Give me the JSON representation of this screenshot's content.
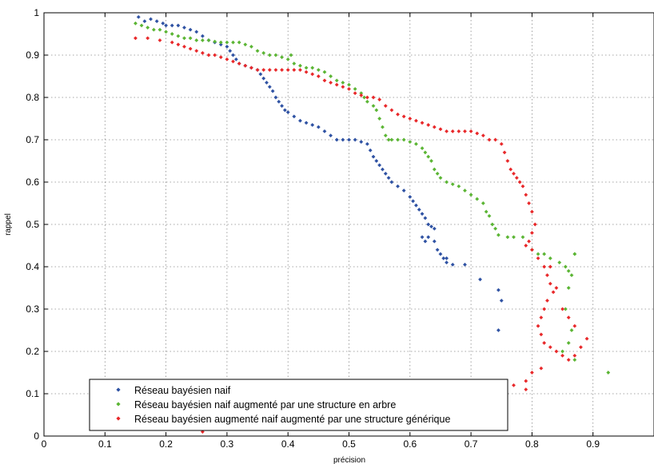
{
  "chart_data": {
    "type": "scatter",
    "title": "",
    "xlabel": "précision",
    "ylabel": "rappel",
    "xlim": [
      0,
      1
    ],
    "ylim": [
      0,
      1
    ],
    "grid": true,
    "legend_position": "bottom-left",
    "x_ticks": [
      "0",
      "0.1",
      "0.2",
      "0.3",
      "0.4",
      "0.5",
      "0.6",
      "0.7",
      "0.8",
      "0.9"
    ],
    "y_ticks": [
      "0",
      "0.1",
      "0.2",
      "0.3",
      "0.4",
      "0.5",
      "0.6",
      "0.7",
      "0.8",
      "0.9",
      "1"
    ],
    "series": [
      {
        "name": "Réseau bayésien naif",
        "color": "#2f52a3",
        "points": [
          [
            0.155,
            0.99
          ],
          [
            0.165,
            0.98
          ],
          [
            0.175,
            0.985
          ],
          [
            0.185,
            0.98
          ],
          [
            0.195,
            0.975
          ],
          [
            0.2,
            0.97
          ],
          [
            0.21,
            0.97
          ],
          [
            0.22,
            0.97
          ],
          [
            0.23,
            0.965
          ],
          [
            0.24,
            0.96
          ],
          [
            0.25,
            0.955
          ],
          [
            0.26,
            0.945
          ],
          [
            0.27,
            0.935
          ],
          [
            0.28,
            0.93
          ],
          [
            0.29,
            0.925
          ],
          [
            0.3,
            0.92
          ],
          [
            0.305,
            0.91
          ],
          [
            0.31,
            0.9
          ],
          [
            0.315,
            0.89
          ],
          [
            0.32,
            0.88
          ],
          [
            0.33,
            0.875
          ],
          [
            0.34,
            0.87
          ],
          [
            0.35,
            0.865
          ],
          [
            0.355,
            0.855
          ],
          [
            0.36,
            0.845
          ],
          [
            0.365,
            0.835
          ],
          [
            0.37,
            0.825
          ],
          [
            0.375,
            0.815
          ],
          [
            0.38,
            0.8
          ],
          [
            0.385,
            0.79
          ],
          [
            0.39,
            0.78
          ],
          [
            0.395,
            0.77
          ],
          [
            0.4,
            0.765
          ],
          [
            0.41,
            0.755
          ],
          [
            0.42,
            0.745
          ],
          [
            0.43,
            0.74
          ],
          [
            0.44,
            0.735
          ],
          [
            0.45,
            0.73
          ],
          [
            0.46,
            0.72
          ],
          [
            0.47,
            0.71
          ],
          [
            0.48,
            0.7
          ],
          [
            0.49,
            0.7
          ],
          [
            0.5,
            0.7
          ],
          [
            0.51,
            0.7
          ],
          [
            0.52,
            0.695
          ],
          [
            0.53,
            0.69
          ],
          [
            0.535,
            0.675
          ],
          [
            0.54,
            0.66
          ],
          [
            0.545,
            0.65
          ],
          [
            0.55,
            0.64
          ],
          [
            0.555,
            0.63
          ],
          [
            0.56,
            0.62
          ],
          [
            0.565,
            0.61
          ],
          [
            0.57,
            0.6
          ],
          [
            0.58,
            0.59
          ],
          [
            0.59,
            0.58
          ],
          [
            0.6,
            0.565
          ],
          [
            0.605,
            0.555
          ],
          [
            0.61,
            0.545
          ],
          [
            0.615,
            0.535
          ],
          [
            0.62,
            0.525
          ],
          [
            0.625,
            0.515
          ],
          [
            0.63,
            0.5
          ],
          [
            0.635,
            0.495
          ],
          [
            0.62,
            0.47
          ],
          [
            0.625,
            0.46
          ],
          [
            0.64,
            0.46
          ],
          [
            0.645,
            0.44
          ],
          [
            0.65,
            0.43
          ],
          [
            0.655,
            0.42
          ],
          [
            0.66,
            0.41
          ],
          [
            0.67,
            0.405
          ],
          [
            0.69,
            0.405
          ],
          [
            0.715,
            0.37
          ],
          [
            0.745,
            0.345
          ],
          [
            0.75,
            0.32
          ],
          [
            0.745,
            0.25
          ],
          [
            0.64,
            0.49
          ],
          [
            0.63,
            0.47
          ],
          [
            0.66,
            0.42
          ]
        ]
      },
      {
        "name": "Réseau bayésien naif augmenté par une structure en arbre",
        "color": "#5bb534",
        "points": [
          [
            0.15,
            0.975
          ],
          [
            0.16,
            0.97
          ],
          [
            0.17,
            0.965
          ],
          [
            0.18,
            0.96
          ],
          [
            0.19,
            0.96
          ],
          [
            0.2,
            0.955
          ],
          [
            0.21,
            0.95
          ],
          [
            0.22,
            0.945
          ],
          [
            0.23,
            0.94
          ],
          [
            0.24,
            0.94
          ],
          [
            0.25,
            0.935
          ],
          [
            0.26,
            0.935
          ],
          [
            0.27,
            0.935
          ],
          [
            0.28,
            0.932
          ],
          [
            0.29,
            0.93
          ],
          [
            0.3,
            0.93
          ],
          [
            0.31,
            0.93
          ],
          [
            0.32,
            0.93
          ],
          [
            0.33,
            0.925
          ],
          [
            0.34,
            0.92
          ],
          [
            0.35,
            0.91
          ],
          [
            0.36,
            0.905
          ],
          [
            0.37,
            0.9
          ],
          [
            0.38,
            0.9
          ],
          [
            0.39,
            0.895
          ],
          [
            0.4,
            0.89
          ],
          [
            0.405,
            0.9
          ],
          [
            0.41,
            0.88
          ],
          [
            0.42,
            0.875
          ],
          [
            0.43,
            0.87
          ],
          [
            0.44,
            0.87
          ],
          [
            0.45,
            0.865
          ],
          [
            0.46,
            0.86
          ],
          [
            0.47,
            0.85
          ],
          [
            0.48,
            0.84
          ],
          [
            0.49,
            0.835
          ],
          [
            0.5,
            0.83
          ],
          [
            0.51,
            0.82
          ],
          [
            0.52,
            0.81
          ],
          [
            0.525,
            0.8
          ],
          [
            0.53,
            0.79
          ],
          [
            0.54,
            0.78
          ],
          [
            0.545,
            0.77
          ],
          [
            0.55,
            0.75
          ],
          [
            0.555,
            0.73
          ],
          [
            0.56,
            0.71
          ],
          [
            0.565,
            0.7
          ],
          [
            0.57,
            0.7
          ],
          [
            0.58,
            0.7
          ],
          [
            0.59,
            0.7
          ],
          [
            0.6,
            0.695
          ],
          [
            0.61,
            0.69
          ],
          [
            0.62,
            0.68
          ],
          [
            0.625,
            0.67
          ],
          [
            0.63,
            0.66
          ],
          [
            0.635,
            0.65
          ],
          [
            0.64,
            0.63
          ],
          [
            0.645,
            0.62
          ],
          [
            0.65,
            0.61
          ],
          [
            0.66,
            0.6
          ],
          [
            0.67,
            0.595
          ],
          [
            0.68,
            0.59
          ],
          [
            0.69,
            0.58
          ],
          [
            0.7,
            0.57
          ],
          [
            0.71,
            0.56
          ],
          [
            0.72,
            0.55
          ],
          [
            0.725,
            0.53
          ],
          [
            0.73,
            0.52
          ],
          [
            0.735,
            0.5
          ],
          [
            0.74,
            0.49
          ],
          [
            0.745,
            0.475
          ],
          [
            0.76,
            0.47
          ],
          [
            0.77,
            0.47
          ],
          [
            0.785,
            0.47
          ],
          [
            0.8,
            0.44
          ],
          [
            0.81,
            0.43
          ],
          [
            0.82,
            0.43
          ],
          [
            0.83,
            0.42
          ],
          [
            0.845,
            0.41
          ],
          [
            0.855,
            0.4
          ],
          [
            0.86,
            0.39
          ],
          [
            0.865,
            0.38
          ],
          [
            0.87,
            0.43
          ],
          [
            0.87,
            0.43
          ],
          [
            0.86,
            0.35
          ],
          [
            0.855,
            0.3
          ],
          [
            0.865,
            0.25
          ],
          [
            0.86,
            0.22
          ],
          [
            0.85,
            0.2
          ],
          [
            0.87,
            0.18
          ],
          [
            0.925,
            0.15
          ]
        ]
      },
      {
        "name": "Réseau bayésien augmenté naif augmenté par une structure générique",
        "color": "#e8282a",
        "points": [
          [
            0.15,
            0.94
          ],
          [
            0.17,
            0.94
          ],
          [
            0.19,
            0.935
          ],
          [
            0.21,
            0.93
          ],
          [
            0.22,
            0.925
          ],
          [
            0.23,
            0.92
          ],
          [
            0.24,
            0.915
          ],
          [
            0.25,
            0.91
          ],
          [
            0.26,
            0.905
          ],
          [
            0.27,
            0.9
          ],
          [
            0.28,
            0.9
          ],
          [
            0.29,
            0.895
          ],
          [
            0.3,
            0.89
          ],
          [
            0.31,
            0.885
          ],
          [
            0.32,
            0.88
          ],
          [
            0.33,
            0.875
          ],
          [
            0.34,
            0.87
          ],
          [
            0.35,
            0.865
          ],
          [
            0.36,
            0.865
          ],
          [
            0.37,
            0.865
          ],
          [
            0.38,
            0.865
          ],
          [
            0.39,
            0.865
          ],
          [
            0.4,
            0.865
          ],
          [
            0.41,
            0.865
          ],
          [
            0.42,
            0.865
          ],
          [
            0.43,
            0.86
          ],
          [
            0.44,
            0.855
          ],
          [
            0.45,
            0.85
          ],
          [
            0.46,
            0.84
          ],
          [
            0.47,
            0.835
          ],
          [
            0.48,
            0.83
          ],
          [
            0.49,
            0.825
          ],
          [
            0.5,
            0.82
          ],
          [
            0.51,
            0.81
          ],
          [
            0.52,
            0.805
          ],
          [
            0.53,
            0.8
          ],
          [
            0.54,
            0.8
          ],
          [
            0.55,
            0.795
          ],
          [
            0.56,
            0.78
          ],
          [
            0.57,
            0.77
          ],
          [
            0.58,
            0.76
          ],
          [
            0.59,
            0.755
          ],
          [
            0.6,
            0.75
          ],
          [
            0.61,
            0.745
          ],
          [
            0.62,
            0.74
          ],
          [
            0.63,
            0.735
          ],
          [
            0.64,
            0.73
          ],
          [
            0.65,
            0.725
          ],
          [
            0.66,
            0.72
          ],
          [
            0.67,
            0.72
          ],
          [
            0.68,
            0.72
          ],
          [
            0.69,
            0.72
          ],
          [
            0.7,
            0.72
          ],
          [
            0.71,
            0.715
          ],
          [
            0.72,
            0.71
          ],
          [
            0.73,
            0.7
          ],
          [
            0.74,
            0.7
          ],
          [
            0.75,
            0.69
          ],
          [
            0.755,
            0.67
          ],
          [
            0.76,
            0.65
          ],
          [
            0.765,
            0.63
          ],
          [
            0.77,
            0.62
          ],
          [
            0.775,
            0.61
          ],
          [
            0.78,
            0.6
          ],
          [
            0.785,
            0.59
          ],
          [
            0.79,
            0.57
          ],
          [
            0.795,
            0.55
          ],
          [
            0.8,
            0.53
          ],
          [
            0.805,
            0.5
          ],
          [
            0.8,
            0.48
          ],
          [
            0.795,
            0.46
          ],
          [
            0.79,
            0.45
          ],
          [
            0.8,
            0.44
          ],
          [
            0.81,
            0.42
          ],
          [
            0.82,
            0.4
          ],
          [
            0.825,
            0.38
          ],
          [
            0.83,
            0.36
          ],
          [
            0.835,
            0.34
          ],
          [
            0.825,
            0.32
          ],
          [
            0.82,
            0.3
          ],
          [
            0.815,
            0.28
          ],
          [
            0.81,
            0.26
          ],
          [
            0.815,
            0.24
          ],
          [
            0.82,
            0.22
          ],
          [
            0.83,
            0.21
          ],
          [
            0.84,
            0.2
          ],
          [
            0.85,
            0.19
          ],
          [
            0.86,
            0.18
          ],
          [
            0.87,
            0.19
          ],
          [
            0.88,
            0.21
          ],
          [
            0.89,
            0.23
          ],
          [
            0.87,
            0.26
          ],
          [
            0.86,
            0.28
          ],
          [
            0.85,
            0.3
          ],
          [
            0.84,
            0.35
          ],
          [
            0.83,
            0.4
          ],
          [
            0.815,
            0.16
          ],
          [
            0.8,
            0.15
          ],
          [
            0.79,
            0.13
          ],
          [
            0.77,
            0.12
          ],
          [
            0.75,
            0.12
          ],
          [
            0.74,
            0.13
          ],
          [
            0.79,
            0.11
          ],
          [
            0.26,
            0.01
          ]
        ]
      }
    ]
  }
}
